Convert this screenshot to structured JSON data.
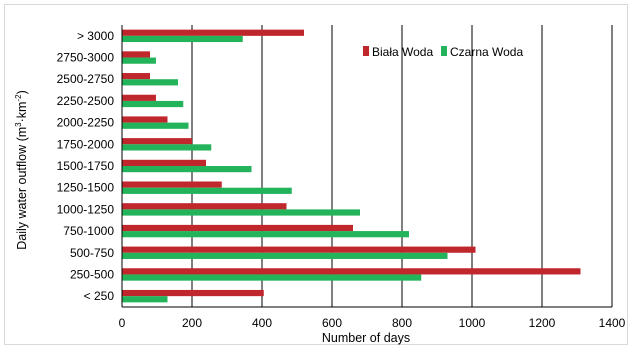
{
  "chart_data": {
    "type": "bar",
    "orientation": "horizontal",
    "categories": [
      "< 250",
      "250-500",
      "500-750",
      "750-1000",
      "1000-1250",
      "1250-1500",
      "1500-1750",
      "1750-2000",
      "2000-2250",
      "2250-2500",
      "2500-2750",
      "2750-3000",
      "> 3000"
    ],
    "series": [
      {
        "name": "Biała Woda",
        "color": "#c0272d",
        "values": [
          405,
          1310,
          1010,
          660,
          470,
          285,
          240,
          200,
          130,
          97,
          80,
          80,
          520
        ]
      },
      {
        "name": "Czarna Woda",
        "color": "#23b35a",
        "values": [
          130,
          855,
          930,
          820,
          680,
          485,
          370,
          255,
          190,
          175,
          160,
          97,
          345
        ]
      }
    ],
    "xlabel": "Number of days",
    "ylabel_main": "Daily water outflow (m",
    "ylabel_sup1": "3",
    "ylabel_mid": "km",
    "ylabel_sup2": "-2",
    "ylabel_end": ")",
    "ylabel_sep": "·",
    "xlim": [
      0,
      1400
    ],
    "xticks": [
      0,
      200,
      400,
      600,
      800,
      1000,
      1200,
      1400
    ],
    "grid": "vertical",
    "legend_position": "top-right"
  }
}
